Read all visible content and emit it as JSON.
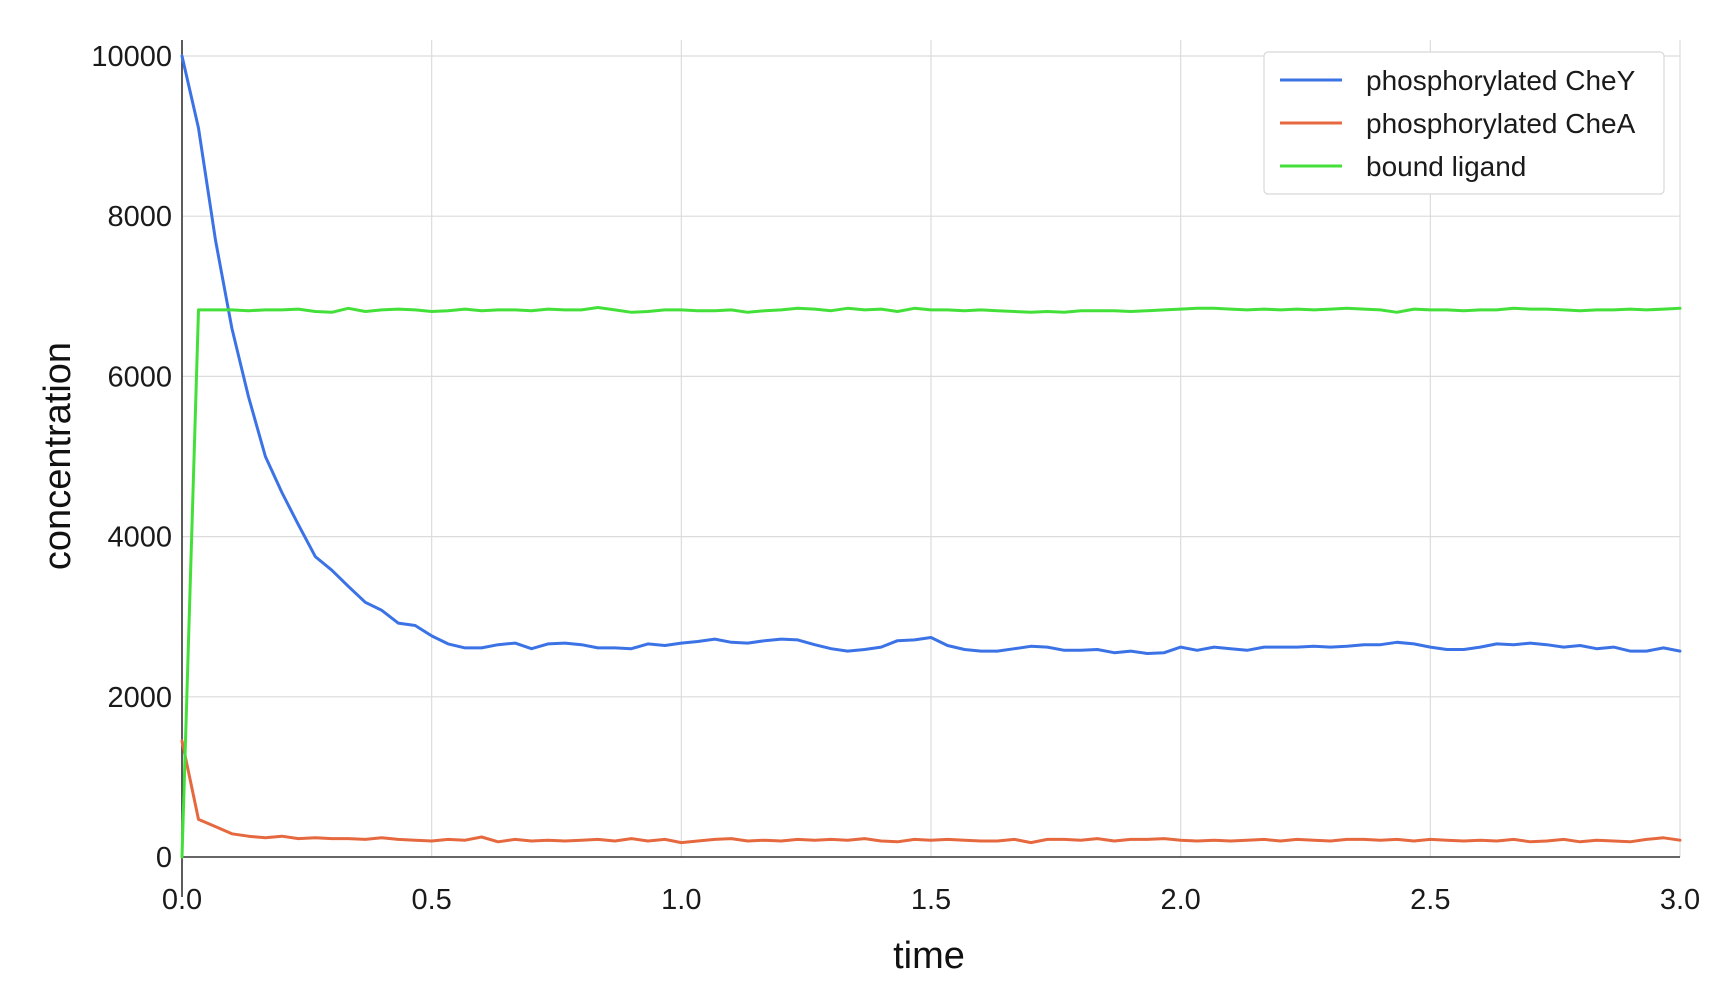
{
  "chart_data": {
    "type": "line",
    "xlabel": "time",
    "ylabel": "concentration",
    "xlim": [
      0,
      3.0
    ],
    "ylim": [
      0,
      10000
    ],
    "xticks": [
      "0.0",
      "0.5",
      "1.0",
      "1.5",
      "2.0",
      "2.5",
      "3.0"
    ],
    "yticks": [
      "0",
      "2000",
      "4000",
      "6000",
      "8000",
      "10000"
    ],
    "grid": true,
    "legend_position": "top-right",
    "series": [
      {
        "name": "phosphorylated CheY",
        "color": "#3b73e6",
        "x": [
          0,
          0.033,
          0.067,
          0.1,
          0.133,
          0.167,
          0.2,
          0.233,
          0.267,
          0.3,
          0.333,
          0.367,
          0.4,
          0.433,
          0.467,
          0.5,
          0.533,
          0.567,
          0.6,
          0.633,
          0.667,
          0.7,
          0.733,
          0.767,
          0.8,
          0.833,
          0.867,
          0.9,
          0.933,
          0.967,
          1.0,
          1.033,
          1.067,
          1.1,
          1.133,
          1.167,
          1.2,
          1.233,
          1.267,
          1.3,
          1.333,
          1.367,
          1.4,
          1.433,
          1.467,
          1.5,
          1.533,
          1.567,
          1.6,
          1.633,
          1.667,
          1.7,
          1.733,
          1.767,
          1.8,
          1.833,
          1.867,
          1.9,
          1.933,
          1.967,
          2.0,
          2.033,
          2.067,
          2.1,
          2.133,
          2.167,
          2.2,
          2.233,
          2.267,
          2.3,
          2.333,
          2.367,
          2.4,
          2.433,
          2.467,
          2.5,
          2.533,
          2.567,
          2.6,
          2.633,
          2.667,
          2.7,
          2.733,
          2.767,
          2.8,
          2.833,
          2.867,
          2.9,
          2.933,
          2.967,
          3.0
        ],
        "y": [
          10000,
          9100,
          7700,
          6600,
          5750,
          5000,
          4550,
          4150,
          3750,
          3580,
          3380,
          3180,
          3080,
          2920,
          2890,
          2760,
          2660,
          2610,
          2610,
          2650,
          2670,
          2600,
          2660,
          2670,
          2650,
          2610,
          2610,
          2600,
          2660,
          2640,
          2670,
          2690,
          2720,
          2680,
          2670,
          2700,
          2720,
          2710,
          2650,
          2600,
          2570,
          2590,
          2620,
          2700,
          2710,
          2740,
          2640,
          2590,
          2570,
          2570,
          2600,
          2630,
          2620,
          2580,
          2580,
          2590,
          2550,
          2570,
          2540,
          2550,
          2620,
          2580,
          2620,
          2600,
          2580,
          2620,
          2620,
          2620,
          2630,
          2620,
          2630,
          2650,
          2650,
          2680,
          2660,
          2620,
          2590,
          2590,
          2620,
          2660,
          2650,
          2670,
          2650,
          2620,
          2640,
          2600,
          2620,
          2570,
          2570,
          2610,
          2570
        ]
      },
      {
        "name": "phosphorylated CheA",
        "color": "#e5683e",
        "x": [
          0,
          0.033,
          0.067,
          0.1,
          0.133,
          0.167,
          0.2,
          0.233,
          0.267,
          0.3,
          0.333,
          0.367,
          0.4,
          0.433,
          0.467,
          0.5,
          0.533,
          0.567,
          0.6,
          0.633,
          0.667,
          0.7,
          0.733,
          0.767,
          0.8,
          0.833,
          0.867,
          0.9,
          0.933,
          0.967,
          1.0,
          1.033,
          1.067,
          1.1,
          1.133,
          1.167,
          1.2,
          1.233,
          1.267,
          1.3,
          1.333,
          1.367,
          1.4,
          1.433,
          1.467,
          1.5,
          1.533,
          1.567,
          1.6,
          1.633,
          1.667,
          1.7,
          1.733,
          1.767,
          1.8,
          1.833,
          1.867,
          1.9,
          1.933,
          1.967,
          2.0,
          2.033,
          2.067,
          2.1,
          2.133,
          2.167,
          2.2,
          2.233,
          2.267,
          2.3,
          2.333,
          2.367,
          2.4,
          2.433,
          2.467,
          2.5,
          2.533,
          2.567,
          2.6,
          2.633,
          2.667,
          2.7,
          2.733,
          2.767,
          2.8,
          2.833,
          2.867,
          2.9,
          2.933,
          2.967,
          3.0
        ],
        "y": [
          1450,
          470,
          380,
          290,
          260,
          240,
          260,
          230,
          240,
          230,
          230,
          220,
          240,
          220,
          210,
          200,
          220,
          210,
          250,
          190,
          220,
          200,
          210,
          200,
          210,
          220,
          200,
          230,
          200,
          220,
          180,
          200,
          220,
          230,
          200,
          210,
          200,
          220,
          210,
          220,
          210,
          230,
          200,
          190,
          220,
          210,
          220,
          210,
          200,
          200,
          220,
          180,
          220,
          220,
          210,
          230,
          200,
          220,
          220,
          230,
          210,
          200,
          210,
          200,
          210,
          220,
          200,
          220,
          210,
          200,
          220,
          220,
          210,
          220,
          200,
          220,
          210,
          200,
          210,
          200,
          220,
          190,
          200,
          220,
          190,
          210,
          200,
          190,
          220,
          240,
          210
        ]
      },
      {
        "name": "bound ligand",
        "color": "#44e03a",
        "x": [
          0,
          0.033,
          0.067,
          0.1,
          0.133,
          0.167,
          0.2,
          0.233,
          0.267,
          0.3,
          0.333,
          0.367,
          0.4,
          0.433,
          0.467,
          0.5,
          0.533,
          0.567,
          0.6,
          0.633,
          0.667,
          0.7,
          0.733,
          0.767,
          0.8,
          0.833,
          0.867,
          0.9,
          0.933,
          0.967,
          1.0,
          1.033,
          1.067,
          1.1,
          1.133,
          1.167,
          1.2,
          1.233,
          1.267,
          1.3,
          1.333,
          1.367,
          1.4,
          1.433,
          1.467,
          1.5,
          1.533,
          1.567,
          1.6,
          1.633,
          1.667,
          1.7,
          1.733,
          1.767,
          1.8,
          1.833,
          1.867,
          1.9,
          1.933,
          1.967,
          2.0,
          2.033,
          2.067,
          2.1,
          2.133,
          2.167,
          2.2,
          2.233,
          2.267,
          2.3,
          2.333,
          2.367,
          2.4,
          2.433,
          2.467,
          2.5,
          2.533,
          2.567,
          2.6,
          2.633,
          2.667,
          2.7,
          2.733,
          2.767,
          2.8,
          2.833,
          2.867,
          2.9,
          2.933,
          2.967,
          3.0
        ],
        "y": [
          0,
          6830,
          6830,
          6830,
          6820,
          6830,
          6830,
          6840,
          6810,
          6800,
          6850,
          6810,
          6830,
          6840,
          6830,
          6810,
          6820,
          6840,
          6820,
          6830,
          6830,
          6820,
          6840,
          6830,
          6830,
          6860,
          6830,
          6800,
          6810,
          6830,
          6830,
          6820,
          6820,
          6830,
          6800,
          6820,
          6830,
          6850,
          6840,
          6820,
          6850,
          6830,
          6840,
          6810,
          6850,
          6830,
          6830,
          6820,
          6830,
          6820,
          6810,
          6800,
          6810,
          6800,
          6820,
          6820,
          6820,
          6810,
          6820,
          6830,
          6840,
          6850,
          6850,
          6840,
          6830,
          6840,
          6830,
          6840,
          6830,
          6840,
          6850,
          6840,
          6830,
          6800,
          6840,
          6830,
          6830,
          6820,
          6830,
          6830,
          6850,
          6840,
          6840,
          6830,
          6820,
          6830,
          6830,
          6840,
          6830,
          6840,
          6850
        ]
      }
    ]
  }
}
